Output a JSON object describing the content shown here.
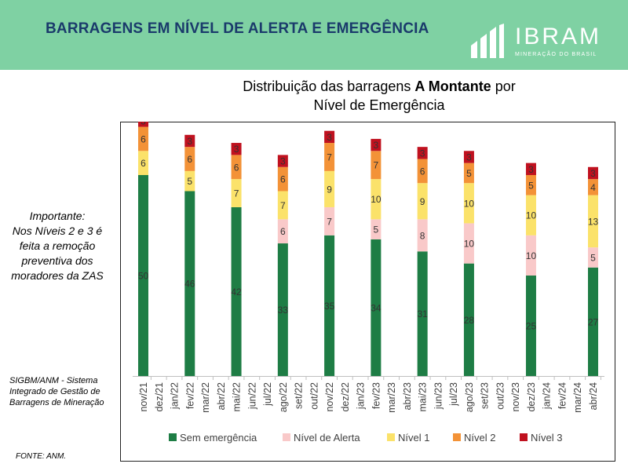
{
  "header": {
    "title": "BARRAGENS EM NÍVEL DE ALERTA E EMERGÊNCIA",
    "logo_name": "IBRAM",
    "logo_subtitle": "MINERAÇÃO DO BRASIL",
    "background_color": "#7fd1a3",
    "title_color": "#1a3a6b"
  },
  "chart_title": {
    "prefix": "Distribuição das barragens ",
    "bold": "A Montante",
    "suffix": " por",
    "line2": "Nível de Emergência"
  },
  "note": {
    "line1": "Importante:",
    "line2": "Nos Níveis 2 e 3 é feita a remoção preventiva dos moradores da ZAS"
  },
  "source_note": "SIGBM/ANM - Sistema Integrado de Gestão de Barragens de Mineração",
  "fonte": "FONTE: ANM.",
  "chart_data": {
    "type": "bar",
    "stacked": true,
    "categories": [
      "nov/21",
      "dez/21",
      "jan/22",
      "fev/22",
      "mar/22",
      "abr/22",
      "mai/22",
      "jun/22",
      "jul/22",
      "ago/22",
      "set/22",
      "out/22",
      "nov/22",
      "dez/22",
      "jan/23",
      "fev/23",
      "mar/23",
      "abr/23",
      "mai/23",
      "jun/23",
      "jul/23",
      "ago/23",
      "set/23",
      "out/23",
      "nov/23",
      "dez/23",
      "jan/24",
      "fev/24",
      "mar/24",
      "abr/24"
    ],
    "series": [
      {
        "name": "Sem emergência",
        "color": "#1e7d45",
        "values": [
          50,
          null,
          null,
          46,
          null,
          null,
          42,
          null,
          null,
          33,
          null,
          null,
          35,
          null,
          null,
          34,
          null,
          null,
          31,
          null,
          null,
          28,
          null,
          null,
          null,
          25,
          null,
          null,
          null,
          27
        ]
      },
      {
        "name": "Nível de Alerta",
        "color": "#f9c9c9",
        "values": [
          null,
          null,
          null,
          null,
          null,
          null,
          null,
          null,
          null,
          6,
          null,
          null,
          7,
          null,
          null,
          5,
          null,
          null,
          8,
          null,
          null,
          10,
          null,
          null,
          null,
          10,
          null,
          null,
          null,
          5
        ]
      },
      {
        "name": "Nível 1",
        "color": "#fbe26a",
        "values": [
          6,
          null,
          null,
          5,
          null,
          null,
          7,
          null,
          null,
          7,
          null,
          null,
          9,
          null,
          null,
          10,
          null,
          null,
          9,
          null,
          null,
          10,
          null,
          null,
          null,
          10,
          null,
          null,
          null,
          13
        ]
      },
      {
        "name": "Nível 2",
        "color": "#f39237",
        "values": [
          6,
          null,
          null,
          6,
          null,
          null,
          6,
          null,
          null,
          6,
          null,
          null,
          7,
          null,
          null,
          7,
          null,
          null,
          6,
          null,
          null,
          5,
          null,
          null,
          null,
          5,
          null,
          null,
          null,
          4
        ]
      },
      {
        "name": "Nível 3",
        "color": "#c0111f",
        "values": [
          3,
          null,
          null,
          3,
          null,
          null,
          3,
          null,
          null,
          3,
          null,
          null,
          3,
          null,
          null,
          3,
          null,
          null,
          3,
          null,
          null,
          3,
          null,
          null,
          null,
          3,
          null,
          null,
          null,
          3
        ]
      }
    ],
    "legend_position": "bottom",
    "grid": false,
    "ylim": [
      0,
      70
    ]
  }
}
